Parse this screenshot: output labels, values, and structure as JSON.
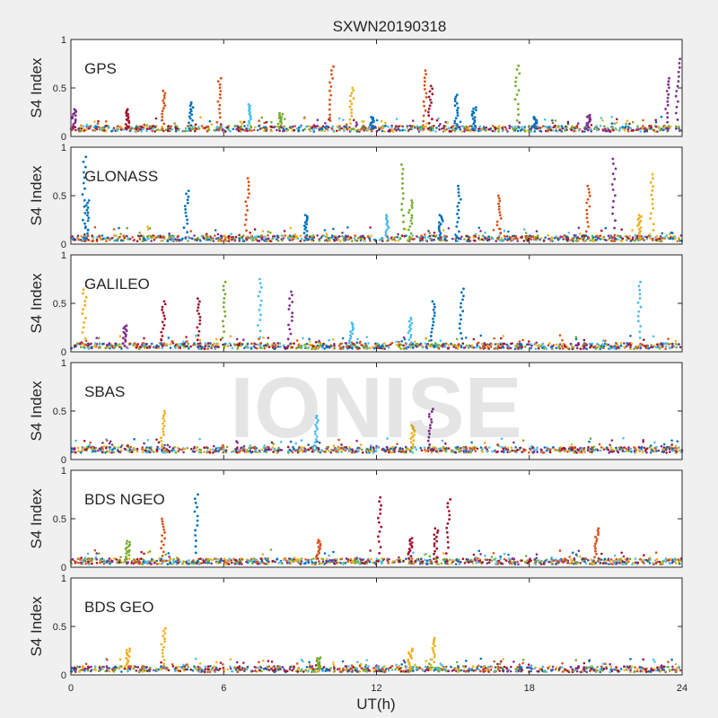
{
  "chart_data": {
    "type": "scatter",
    "title": "SXWN20190318",
    "xlabel": "UT(h)",
    "ylabel": "S4 Index",
    "xlim": [
      0,
      24
    ],
    "ylim": [
      0,
      1
    ],
    "x_ticks": [
      "0",
      "6",
      "12",
      "18",
      "24"
    ],
    "y_ticks": [
      "0",
      "0.5",
      "1"
    ],
    "watermark": "IONISE",
    "colors": [
      "#0072bd",
      "#d95319",
      "#edb120",
      "#7e2f8e",
      "#77ac30",
      "#4dbeee",
      "#a2142f"
    ],
    "panels": [
      {
        "label": "GPS",
        "baseline": 0.08,
        "peaks": [
          {
            "x": 0.1,
            "y": 0.28,
            "color": "#7e2f8e"
          },
          {
            "x": 2.2,
            "y": 0.28,
            "color": "#a2142f"
          },
          {
            "x": 3.6,
            "y": 0.47,
            "color": "#d95319"
          },
          {
            "x": 4.7,
            "y": 0.35,
            "color": "#0072bd"
          },
          {
            "x": 5.8,
            "y": 0.6,
            "color": "#d95319"
          },
          {
            "x": 7.0,
            "y": 0.33,
            "color": "#4dbeee"
          },
          {
            "x": 8.2,
            "y": 0.24,
            "color": "#77ac30"
          },
          {
            "x": 10.2,
            "y": 0.72,
            "color": "#d95319"
          },
          {
            "x": 11.0,
            "y": 0.5,
            "color": "#edb120"
          },
          {
            "x": 11.8,
            "y": 0.2,
            "color": "#0072bd"
          },
          {
            "x": 13.9,
            "y": 0.68,
            "color": "#d95319"
          },
          {
            "x": 14.1,
            "y": 0.52,
            "color": "#a2142f"
          },
          {
            "x": 15.1,
            "y": 0.43,
            "color": "#0072bd"
          },
          {
            "x": 15.8,
            "y": 0.3,
            "color": "#0072bd"
          },
          {
            "x": 17.5,
            "y": 0.73,
            "color": "#77ac30"
          },
          {
            "x": 18.2,
            "y": 0.2,
            "color": "#0072bd"
          },
          {
            "x": 20.3,
            "y": 0.22,
            "color": "#7e2f8e"
          },
          {
            "x": 23.4,
            "y": 0.6,
            "color": "#7e2f8e"
          },
          {
            "x": 23.8,
            "y": 0.8,
            "color": "#7e2f8e"
          }
        ]
      },
      {
        "label": "GLONASS",
        "baseline": 0.06,
        "peaks": [
          {
            "x": 0.5,
            "y": 0.9,
            "color": "#0072bd"
          },
          {
            "x": 0.6,
            "y": 0.45,
            "color": "#0072bd"
          },
          {
            "x": 4.5,
            "y": 0.55,
            "color": "#0072bd"
          },
          {
            "x": 6.9,
            "y": 0.68,
            "color": "#d95319"
          },
          {
            "x": 9.2,
            "y": 0.3,
            "color": "#0072bd"
          },
          {
            "x": 12.4,
            "y": 0.3,
            "color": "#4dbeee"
          },
          {
            "x": 13.0,
            "y": 0.82,
            "color": "#77ac30"
          },
          {
            "x": 13.3,
            "y": 0.45,
            "color": "#77ac30"
          },
          {
            "x": 14.5,
            "y": 0.3,
            "color": "#0072bd"
          },
          {
            "x": 15.2,
            "y": 0.6,
            "color": "#0072bd"
          },
          {
            "x": 16.8,
            "y": 0.5,
            "color": "#d95319"
          },
          {
            "x": 20.3,
            "y": 0.6,
            "color": "#d95319"
          },
          {
            "x": 21.3,
            "y": 0.88,
            "color": "#7e2f8e"
          },
          {
            "x": 22.3,
            "y": 0.3,
            "color": "#edb120"
          },
          {
            "x": 22.8,
            "y": 0.72,
            "color": "#edb120"
          }
        ]
      },
      {
        "label": "GALILEO",
        "baseline": 0.06,
        "peaks": [
          {
            "x": 0.5,
            "y": 0.68,
            "color": "#edb120"
          },
          {
            "x": 2.1,
            "y": 0.27,
            "color": "#7e2f8e"
          },
          {
            "x": 3.6,
            "y": 0.52,
            "color": "#a2142f"
          },
          {
            "x": 5.0,
            "y": 0.55,
            "color": "#a2142f"
          },
          {
            "x": 6.0,
            "y": 0.72,
            "color": "#77ac30"
          },
          {
            "x": 7.4,
            "y": 0.75,
            "color": "#4dbeee"
          },
          {
            "x": 8.6,
            "y": 0.62,
            "color": "#7e2f8e"
          },
          {
            "x": 11.0,
            "y": 0.3,
            "color": "#4dbeee"
          },
          {
            "x": 13.3,
            "y": 0.35,
            "color": "#4dbeee"
          },
          {
            "x": 14.2,
            "y": 0.52,
            "color": "#0072bd"
          },
          {
            "x": 15.3,
            "y": 0.65,
            "color": "#0072bd"
          },
          {
            "x": 22.3,
            "y": 0.72,
            "color": "#4dbeee"
          }
        ]
      },
      {
        "label": "SBAS",
        "baseline": 0.1,
        "peaks": [
          {
            "x": 3.6,
            "y": 0.5,
            "color": "#edb120"
          },
          {
            "x": 9.6,
            "y": 0.45,
            "color": "#4dbeee"
          },
          {
            "x": 13.4,
            "y": 0.35,
            "color": "#edb120"
          },
          {
            "x": 14.1,
            "y": 0.52,
            "color": "#7e2f8e"
          }
        ]
      },
      {
        "label": "BDS NGEO",
        "baseline": 0.06,
        "peaks": [
          {
            "x": 2.2,
            "y": 0.27,
            "color": "#77ac30"
          },
          {
            "x": 3.6,
            "y": 0.5,
            "color": "#d95319"
          },
          {
            "x": 4.9,
            "y": 0.75,
            "color": "#0072bd"
          },
          {
            "x": 9.7,
            "y": 0.28,
            "color": "#d95319"
          },
          {
            "x": 12.1,
            "y": 0.72,
            "color": "#a2142f"
          },
          {
            "x": 13.3,
            "y": 0.3,
            "color": "#a2142f"
          },
          {
            "x": 14.3,
            "y": 0.4,
            "color": "#a2142f"
          },
          {
            "x": 14.8,
            "y": 0.7,
            "color": "#a2142f"
          },
          {
            "x": 20.6,
            "y": 0.4,
            "color": "#d95319"
          }
        ]
      },
      {
        "label": "BDS GEO",
        "baseline": 0.06,
        "peaks": [
          {
            "x": 2.2,
            "y": 0.27,
            "color": "#edb120"
          },
          {
            "x": 3.6,
            "y": 0.48,
            "color": "#edb120"
          },
          {
            "x": 9.7,
            "y": 0.18,
            "color": "#77ac30"
          },
          {
            "x": 13.3,
            "y": 0.27,
            "color": "#edb120"
          },
          {
            "x": 14.2,
            "y": 0.38,
            "color": "#edb120"
          }
        ]
      }
    ]
  }
}
